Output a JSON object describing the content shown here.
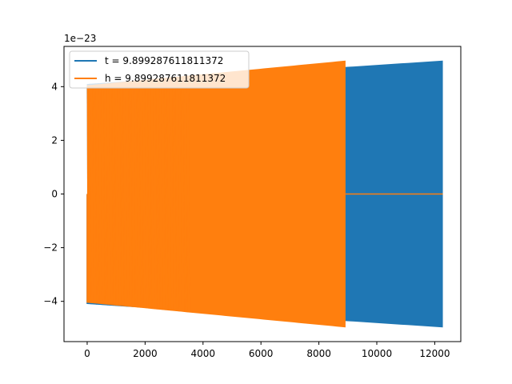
{
  "chart_data": {
    "type": "line",
    "title": "",
    "xlabel": "",
    "ylabel": "",
    "y_offset_label": "1e−23",
    "xlim": [
      -800,
      12900
    ],
    "ylim": [
      -5.5,
      5.5
    ],
    "xticks": [
      0,
      2000,
      4000,
      6000,
      8000,
      10000,
      12000
    ],
    "yticks": [
      -4,
      -2,
      0,
      2,
      4
    ],
    "ytick_labels": [
      "−4",
      "−2",
      "0",
      "2",
      "4"
    ],
    "grid": false,
    "legend_placement": "upper-left",
    "series": [
      {
        "name": "t = 9.899287611811372",
        "color": "#1f77b4",
        "style": "dense-oscillation",
        "x_start": 0,
        "x_end": 12280,
        "amplitude_start": 4.1,
        "amplitude_end": 4.97,
        "x_upper_left": 100,
        "amplitude_upper_left": 4.1,
        "x_lower_left": 0,
        "amplitude_lower_left": -4.1
      },
      {
        "name": "h = 9.899287611811372",
        "color": "#ff7f0e",
        "style": "dense-oscillation",
        "x_start": 0,
        "x_end": 8920,
        "amplitude_start": 4.05,
        "amplitude_end": 4.97,
        "x_upper_left": 100,
        "amplitude_upper_left": 4.05,
        "x_lower_left": 0,
        "amplitude_lower_left": -4.05,
        "flat_after": {
          "x_start": 8920,
          "x_end": 12280,
          "value": 0
        }
      }
    ]
  }
}
